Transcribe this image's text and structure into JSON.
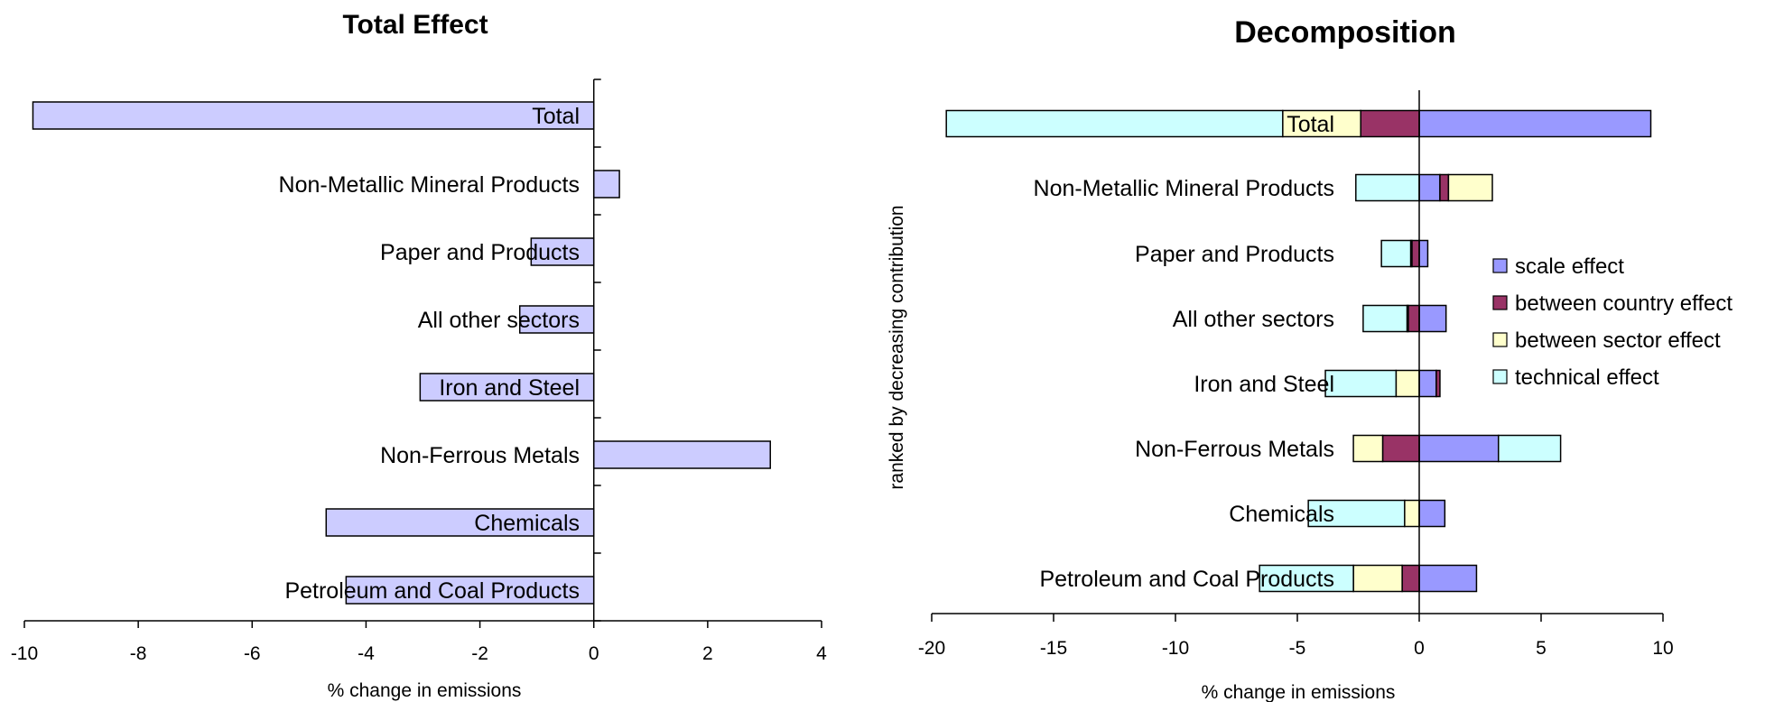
{
  "chart_data": [
    {
      "type": "bar",
      "orientation": "horizontal",
      "title": "Total Effect",
      "xlabel": "% change in emissions",
      "ylabel": "",
      "xlim": [
        -10,
        4
      ],
      "xticks": [
        -10,
        -8,
        -6,
        -4,
        -2,
        0,
        2,
        4
      ],
      "xtick_labels": [
        "-10",
        "-8",
        "-6",
        "-4",
        "-2",
        "0",
        "2",
        "4"
      ],
      "categories": [
        "Total",
        "Non-Metallic Mineral Products",
        "Paper and Products",
        "All other sectors",
        "Iron and Steel",
        "Non-Ferrous Metals",
        "Chemicals",
        "Petroleum and Coal Products"
      ],
      "values": [
        -9.85,
        0.45,
        -1.1,
        -1.3,
        -3.05,
        3.1,
        -4.7,
        -4.35
      ],
      "bar_color": "#ccccff",
      "grid": false,
      "legend": "none"
    },
    {
      "type": "bar",
      "orientation": "horizontal",
      "stacked": true,
      "title": "Decomposition",
      "xlabel": "% change in emissions",
      "ylabel": "ranked by decreasing contribution",
      "xlim": [
        -20,
        10
      ],
      "xticks": [
        -20,
        -15,
        -10,
        -5,
        0,
        5,
        10
      ],
      "xtick_labels": [
        "-20",
        "-15",
        "-10",
        "-5",
        "0",
        "5",
        "10"
      ],
      "categories": [
        "Total",
        "Non-Metallic Mineral Products",
        "Paper and Products",
        "All other sectors",
        "Iron and Steel",
        "Non-Ferrous Metals",
        "Chemicals",
        "Petroleum and Coal Products"
      ],
      "series": [
        {
          "name": "scale effect",
          "color": "#9999ff",
          "values": [
            9.5,
            0.85,
            0.35,
            1.1,
            0.7,
            3.25,
            1.05,
            2.35
          ]
        },
        {
          "name": "between country effect",
          "color": "#993366",
          "values": [
            -2.4,
            0.35,
            -0.3,
            -0.45,
            0.15,
            -1.5,
            0.0,
            -0.7
          ]
        },
        {
          "name": "between sector effect",
          "color": "#ffffcc",
          "values": [
            -3.2,
            1.8,
            -0.05,
            -0.05,
            -0.95,
            -1.2,
            -0.6,
            -2.0
          ]
        },
        {
          "name": "technical effect",
          "color": "#ccffff",
          "values": [
            -13.8,
            -2.6,
            -1.2,
            -1.8,
            -2.9,
            2.55,
            -3.95,
            -3.85
          ]
        }
      ],
      "grid": false,
      "legend": "right"
    }
  ]
}
